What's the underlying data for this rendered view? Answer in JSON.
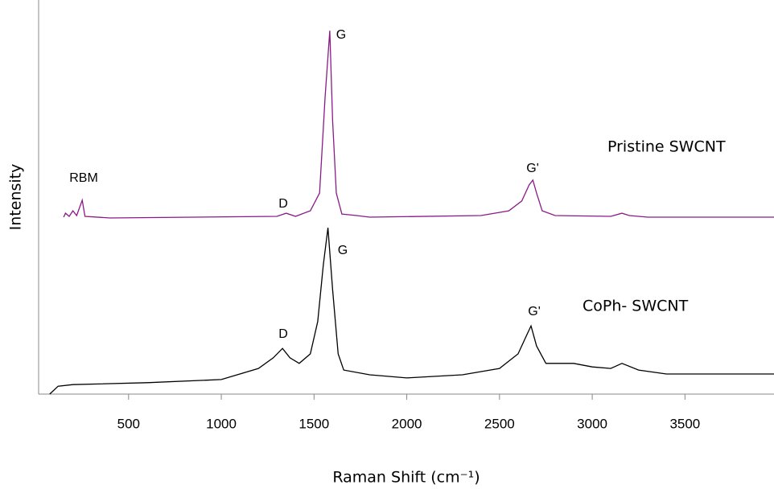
{
  "chart_data": {
    "type": "line",
    "x_label": "Raman Shift (cm⁻¹)",
    "y_label": "Intensity",
    "xlim": [
      15,
      3980
    ],
    "ylim": [
      0,
      100
    ],
    "xticks": [
      500,
      1000,
      1500,
      2000,
      2500,
      3000,
      3500
    ],
    "annotations": [
      "RBM",
      "D",
      "G",
      "G'",
      "Pristine SWCNT",
      "D",
      "G",
      "G'",
      "CoPh- SWCNT"
    ],
    "series": [
      {
        "name": "Pristine SWCNT",
        "color": "#8b1a89",
        "x": [
          150,
          160,
          180,
          200,
          220,
          250,
          265,
          400,
          1300,
          1350,
          1400,
          1480,
          1530,
          1560,
          1585,
          1600,
          1620,
          1650,
          1730,
          1800,
          2400,
          2550,
          2620,
          2660,
          2680,
          2700,
          2730,
          2800,
          3100,
          3160,
          3200,
          3300,
          3980
        ],
        "values": [
          44.9,
          45.9,
          45.1,
          46.5,
          45.3,
          49.2,
          45.1,
          44.7,
          45.1,
          45.9,
          45.1,
          46.5,
          51.0,
          75.5,
          92.2,
          69.4,
          51.0,
          45.7,
          45.3,
          44.9,
          45.3,
          46.5,
          49.0,
          53.1,
          54.3,
          51.0,
          46.5,
          45.3,
          45.1,
          45.9,
          45.3,
          44.9,
          44.9
        ]
      },
      {
        "name": "CoPh- SWCNT",
        "color": "#000000",
        "x": [
          75,
          120,
          200,
          600,
          1000,
          1200,
          1280,
          1330,
          1370,
          1420,
          1480,
          1520,
          1550,
          1575,
          1600,
          1630,
          1660,
          1800,
          2000,
          2300,
          2500,
          2600,
          2650,
          2670,
          2700,
          2750,
          2900,
          3000,
          3100,
          3160,
          3250,
          3400,
          3980
        ],
        "values": [
          0,
          2.0,
          2.4,
          2.9,
          3.7,
          6.5,
          9.2,
          11.6,
          9.2,
          7.8,
          10.2,
          18.4,
          32.7,
          42.2,
          26.5,
          10.2,
          6.1,
          4.9,
          4.1,
          4.9,
          6.5,
          10.2,
          15.3,
          17.3,
          12.2,
          7.8,
          7.8,
          6.9,
          6.5,
          7.8,
          6.1,
          5.1,
          5.1
        ]
      }
    ]
  }
}
